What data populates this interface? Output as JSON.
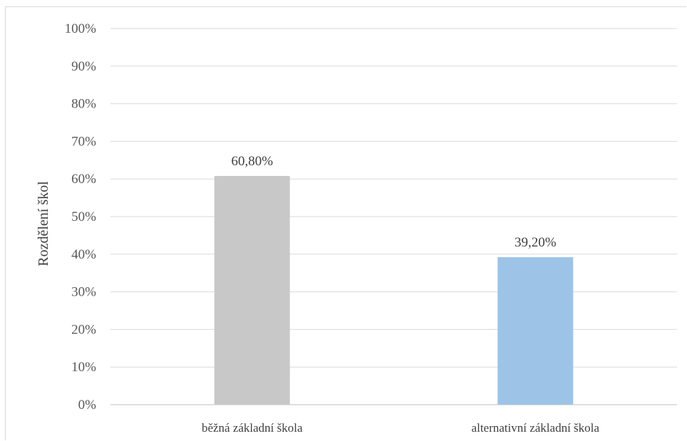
{
  "chart_data": {
    "type": "bar",
    "title": "",
    "xlabel": "",
    "ylabel": "Rozdělení škol",
    "categories": [
      "běžná základní škola",
      "alternativní základní škola"
    ],
    "values": [
      60.8,
      39.2
    ],
    "data_labels": [
      "60,80%",
      "39,20%"
    ],
    "bar_colors": [
      "#c8c8c8",
      "#9dc3e6"
    ],
    "ylim": [
      0,
      100
    ],
    "yticks": [
      0,
      10,
      20,
      30,
      40,
      50,
      60,
      70,
      80,
      90,
      100
    ],
    "ytick_labels": [
      "0%",
      "10%",
      "20%",
      "30%",
      "40%",
      "50%",
      "60%",
      "70%",
      "80%",
      "90%",
      "100%"
    ],
    "grid": true,
    "legend": "none"
  }
}
